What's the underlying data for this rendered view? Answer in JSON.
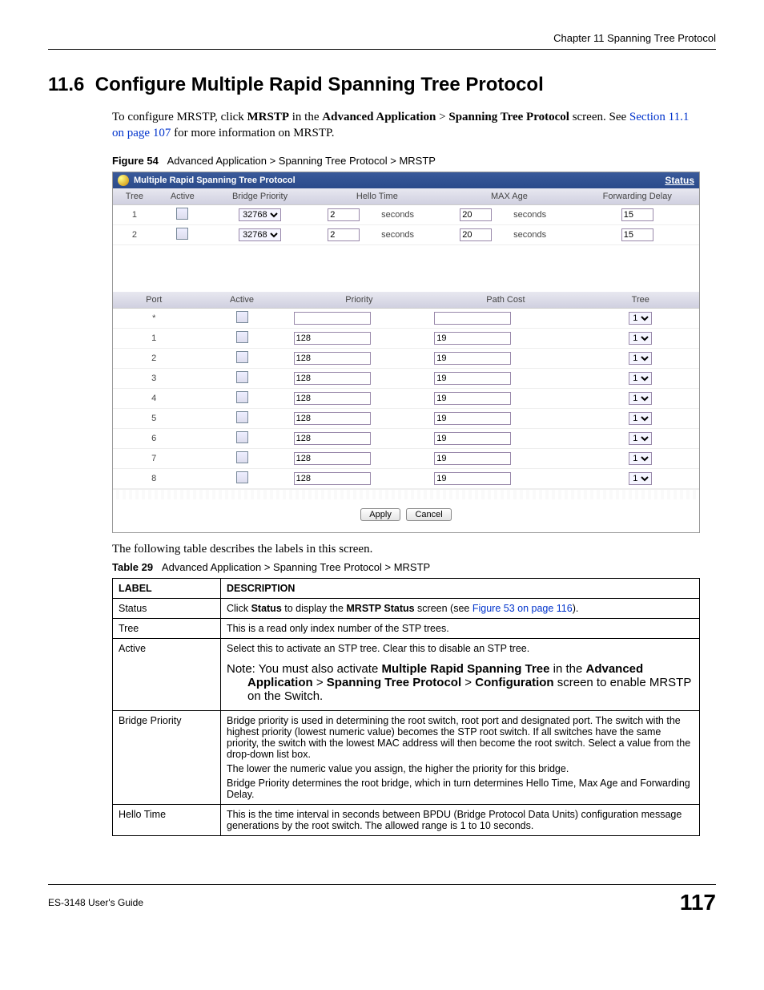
{
  "chapter_header": "Chapter 11 Spanning Tree Protocol",
  "section_num": "11.6",
  "section_title": "Configure Multiple Rapid Spanning Tree Protocol",
  "intro_1a": "To configure MRSTP, click ",
  "intro_1b": "MRSTP",
  "intro_1c": " in the ",
  "intro_1d": "Advanced Application",
  "intro_1e": " > ",
  "intro_1f": "Spanning Tree Protocol",
  "intro_1g": " screen. See ",
  "intro_link": "Section 11.1 on page 107",
  "intro_1h": " for more information on MRSTP.",
  "figure_label": "Figure 54",
  "figure_caption": "Advanced Application > Spanning Tree Protocol > MRSTP",
  "panel_title": "Multiple Rapid Spanning Tree Protocol",
  "status_label": "Status",
  "tree_table": {
    "headers": [
      "Tree",
      "Active",
      "Bridge Priority",
      "Hello Time",
      "MAX Age",
      "Forwarding Delay"
    ],
    "unit_seconds": "seconds",
    "rows": [
      {
        "tree": "1",
        "priority": "32768",
        "hello": "2",
        "maxage": "20",
        "fwd": "15"
      },
      {
        "tree": "2",
        "priority": "32768",
        "hello": "2",
        "maxage": "20",
        "fwd": "15"
      }
    ]
  },
  "port_table": {
    "headers": [
      "Port",
      "Active",
      "Priority",
      "Path Cost",
      "Tree"
    ],
    "rows": [
      {
        "port": "*",
        "priority": "",
        "cost": "",
        "tree": "1"
      },
      {
        "port": "1",
        "priority": "128",
        "cost": "19",
        "tree": "1"
      },
      {
        "port": "2",
        "priority": "128",
        "cost": "19",
        "tree": "1"
      },
      {
        "port": "3",
        "priority": "128",
        "cost": "19",
        "tree": "1"
      },
      {
        "port": "4",
        "priority": "128",
        "cost": "19",
        "tree": "1"
      },
      {
        "port": "5",
        "priority": "128",
        "cost": "19",
        "tree": "1"
      },
      {
        "port": "6",
        "priority": "128",
        "cost": "19",
        "tree": "1"
      },
      {
        "port": "7",
        "priority": "128",
        "cost": "19",
        "tree": "1"
      },
      {
        "port": "8",
        "priority": "128",
        "cost": "19",
        "tree": "1"
      }
    ]
  },
  "btn_apply": "Apply",
  "btn_cancel": "Cancel",
  "desc_intro": "The following table describes the labels in this screen.",
  "table_label": "Table 29",
  "table_caption": "Advanced Application > Spanning Tree Protocol > MRSTP",
  "th_label": "LABEL",
  "th_desc": "DESCRIPTION",
  "rows": {
    "status": {
      "label": "Status",
      "d1": "Click ",
      "d2": "Status",
      "d3": " to display the ",
      "d4": "MRSTP Status",
      "d5": " screen (see ",
      "link": "Figure 53 on page 116",
      "d6": ")."
    },
    "tree": {
      "label": "Tree",
      "desc": "This is a read only index number of the STP trees."
    },
    "active": {
      "label": "Active",
      "desc": "Select this to activate an STP tree. Clear this to disable an STP tree.",
      "note_a": "Note: You must also activate ",
      "note_b": "Multiple Rapid Spanning Tree",
      "note_c": " in the ",
      "note_d": "Advanced Application",
      "note_e": " > ",
      "note_f": "Spanning Tree Protocol",
      "note_g": " > ",
      "note_h": "Configuration",
      "note_i": " screen to enable MRSTP on the Switch."
    },
    "bp": {
      "label": "Bridge Priority",
      "p1": "Bridge priority is used in determining the root switch, root port and designated port. The switch with the highest priority (lowest numeric value) becomes the STP root switch. If all switches have the same priority, the switch with the lowest MAC address will then become the root switch. Select a value from the drop-down list box.",
      "p2": "The lower the numeric value you assign, the higher the priority for this bridge.",
      "p3": "Bridge Priority determines the root bridge, which in turn determines Hello Time, Max Age and Forwarding Delay."
    },
    "hello": {
      "label": "Hello Time",
      "desc": "This is the time interval in seconds between BPDU (Bridge Protocol Data Units) configuration message generations by the root switch. The allowed range is 1 to 10 seconds."
    }
  },
  "footer_guide": "ES-3148 User's Guide",
  "footer_page": "117"
}
